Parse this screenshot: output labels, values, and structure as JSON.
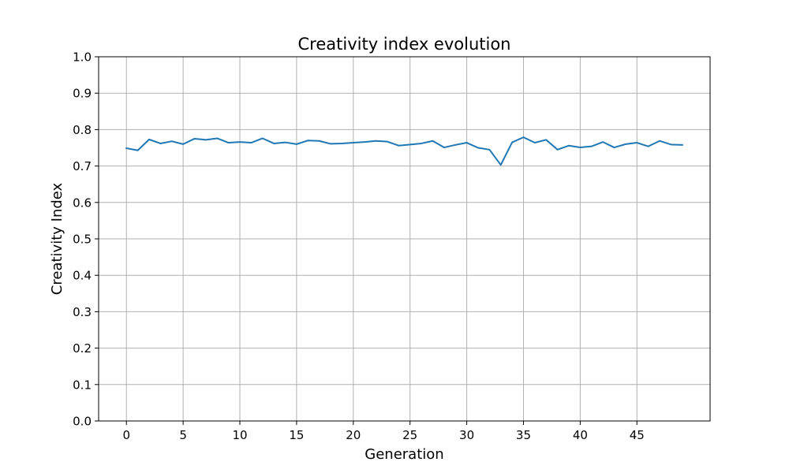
{
  "chart_data": {
    "type": "line",
    "title": "Creativity index evolution",
    "xlabel": "Generation",
    "ylabel": "Creativity Index",
    "xlim": [
      -2.45,
      51.45
    ],
    "ylim": [
      0.0,
      1.0
    ],
    "x_ticks": [
      0,
      5,
      10,
      15,
      20,
      25,
      30,
      35,
      40,
      45
    ],
    "x_tick_labels": [
      "0",
      "5",
      "10",
      "15",
      "20",
      "25",
      "30",
      "35",
      "40",
      "45"
    ],
    "y_ticks": [
      0.0,
      0.1,
      0.2,
      0.3,
      0.4,
      0.5,
      0.6,
      0.7,
      0.8,
      0.9,
      1.0
    ],
    "y_tick_labels": [
      "0.0",
      "0.1",
      "0.2",
      "0.3",
      "0.4",
      "0.5",
      "0.6",
      "0.7",
      "0.8",
      "0.9",
      "1.0"
    ],
    "grid": true,
    "x": [
      0,
      1,
      2,
      3,
      4,
      5,
      6,
      7,
      8,
      9,
      10,
      11,
      12,
      13,
      14,
      15,
      16,
      17,
      18,
      19,
      20,
      21,
      22,
      23,
      24,
      25,
      26,
      27,
      28,
      29,
      30,
      31,
      32,
      33,
      34,
      35,
      36,
      37,
      38,
      39,
      40,
      41,
      42,
      43,
      44,
      45,
      46,
      47,
      48,
      49
    ],
    "series": [
      {
        "values": [
          0.749,
          0.743,
          0.773,
          0.762,
          0.768,
          0.76,
          0.775,
          0.772,
          0.776,
          0.764,
          0.766,
          0.764,
          0.776,
          0.762,
          0.765,
          0.76,
          0.77,
          0.769,
          0.761,
          0.762,
          0.764,
          0.766,
          0.769,
          0.767,
          0.756,
          0.759,
          0.762,
          0.769,
          0.751,
          0.758,
          0.764,
          0.75,
          0.745,
          0.703,
          0.765,
          0.779,
          0.764,
          0.772,
          0.745,
          0.756,
          0.751,
          0.754,
          0.766,
          0.751,
          0.76,
          0.764,
          0.754,
          0.769,
          0.759,
          0.758
        ],
        "color": "#1f77b4"
      }
    ]
  }
}
